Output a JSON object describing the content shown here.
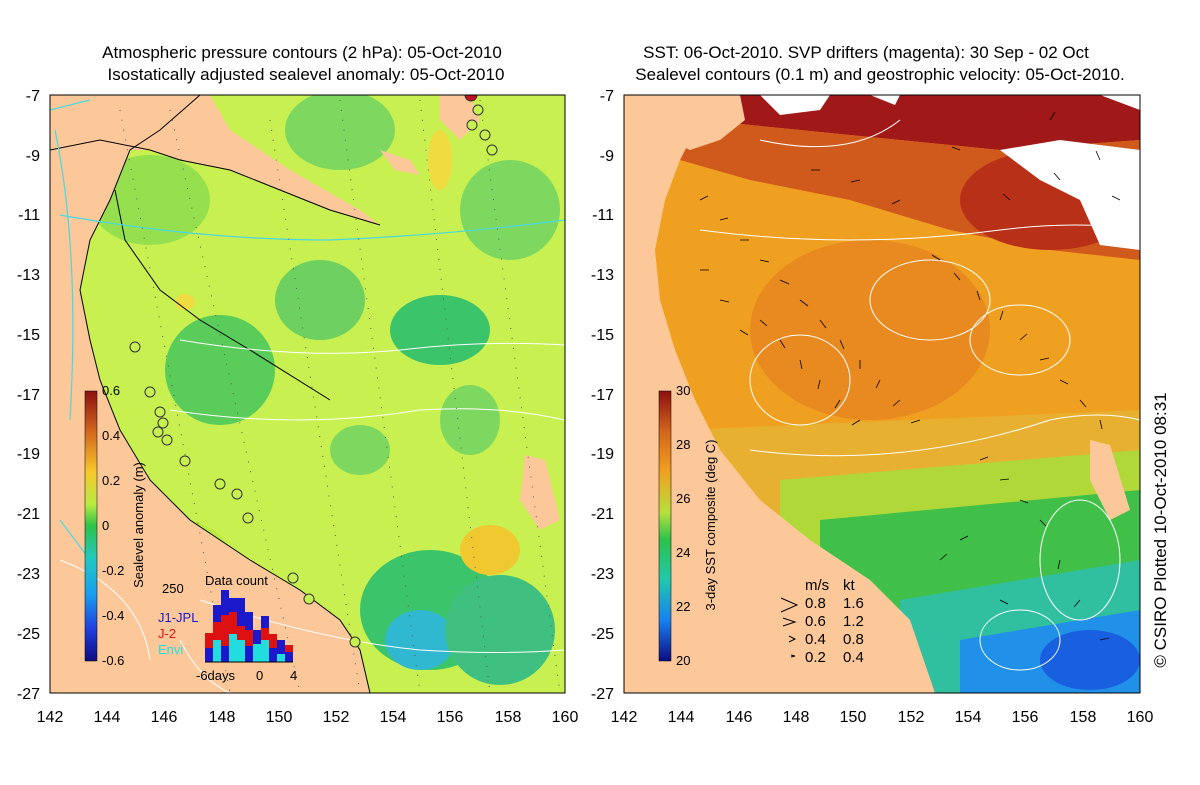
{
  "left_panel": {
    "title_line1": "Atmospheric pressure contours (2 hPa): 05-Oct-2010",
    "title_line2": "Isostatically adjusted sealevel anomaly: 05-Oct-2010",
    "colorbar": {
      "label": "Sealevel anomaly (m)",
      "ticks": [
        "0.6",
        "0.4",
        "0.2",
        "0",
        "-0.2",
        "-0.4",
        "-0.6"
      ]
    },
    "inset": {
      "title": "Data count",
      "ymax_label": "250",
      "x_labels": [
        "-6days",
        "0",
        "4"
      ],
      "legend": [
        {
          "label": "J1-JPL",
          "color": "#1a1acc"
        },
        {
          "label": "J-2",
          "color": "#dd1111"
        },
        {
          "label": "Envi",
          "color": "#22dddd"
        }
      ]
    }
  },
  "right_panel": {
    "title_line1": "SST: 06-Oct-2010. SVP drifters (magenta): 30 Sep - 02 Oct",
    "title_line2": "Sealevel contours (0.1 m) and geostrophic velocity: 05-Oct-2010.",
    "colorbar": {
      "label": "3-day SST composite (deg C)",
      "ticks": [
        "30",
        "28",
        "26",
        "24",
        "22",
        "20"
      ]
    },
    "velocity_key": {
      "headers": [
        "m/s",
        "kt"
      ],
      "rows": [
        {
          "ms": "0.8",
          "kt": "1.6"
        },
        {
          "ms": "0.6",
          "kt": "1.2"
        },
        {
          "ms": "0.4",
          "kt": "0.8"
        },
        {
          "ms": "0.2",
          "kt": "0.4"
        }
      ]
    }
  },
  "axes": {
    "y_ticks": [
      "-7",
      "-9",
      "-11",
      "-13",
      "-15",
      "-17",
      "-19",
      "-21",
      "-23",
      "-25",
      "-27"
    ],
    "x_ticks": [
      "142",
      "144",
      "146",
      "148",
      "150",
      "152",
      "154",
      "156",
      "158",
      "160"
    ]
  },
  "credit": "© CSIRO Plotted 10-Oct-2010 08:31",
  "colors": {
    "land": "#fcc89a",
    "sla_background": "#c8f050",
    "sst_background": "#f0a020"
  }
}
